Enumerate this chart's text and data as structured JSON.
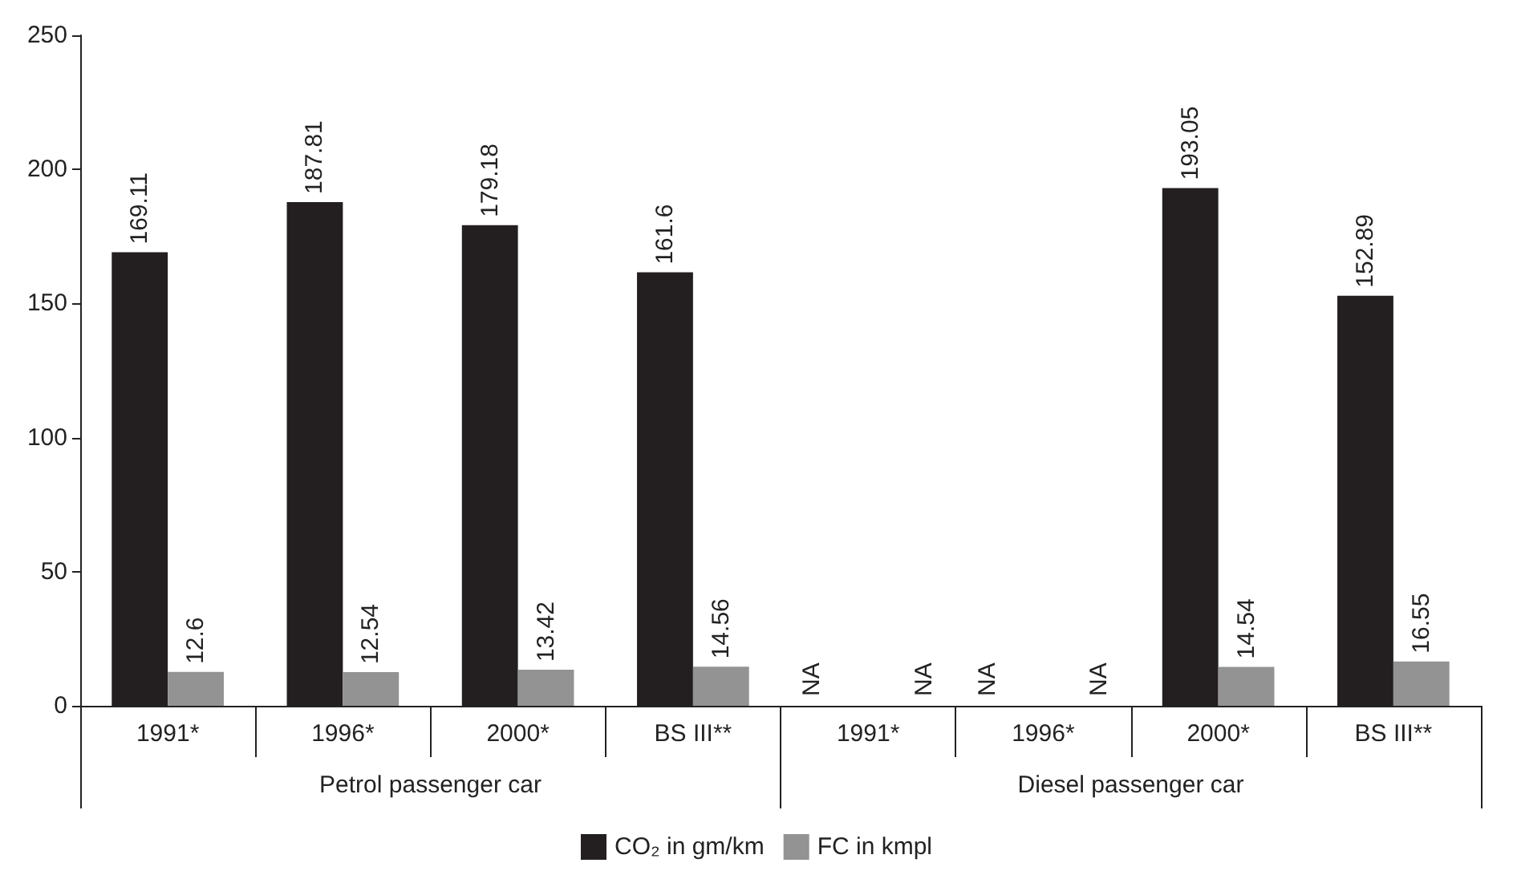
{
  "chart_data": {
    "type": "bar",
    "categories": [
      "1991*",
      "1996*",
      "2000*",
      "BS III**",
      "1991*",
      "1996*",
      "2000*",
      "BS III**"
    ],
    "series": [
      {
        "name": "CO₂ in gm/km",
        "color": "#231f20",
        "values": [
          169.11,
          187.81,
          179.18,
          161.6,
          null,
          null,
          193.05,
          152.89
        ],
        "value_labels": [
          "169.11",
          "187.81",
          "179.18",
          "161.6",
          "NA",
          "NA",
          "193.05",
          "152.89"
        ]
      },
      {
        "name": "FC in kmpl",
        "color": "#939393",
        "values": [
          12.6,
          12.54,
          13.42,
          14.56,
          null,
          null,
          14.54,
          16.55
        ],
        "value_labels": [
          "12.6",
          "12.54",
          "13.42",
          "14.56",
          "NA",
          "NA",
          "14.54",
          "16.55"
        ]
      }
    ],
    "annotations": [
      "Petrol passenger car",
      "Diesel passenger car"
    ],
    "ylim": [
      0,
      250
    ],
    "yticks": [
      0,
      50,
      100,
      150,
      200,
      250
    ],
    "grid": false,
    "legend": "bottom"
  }
}
